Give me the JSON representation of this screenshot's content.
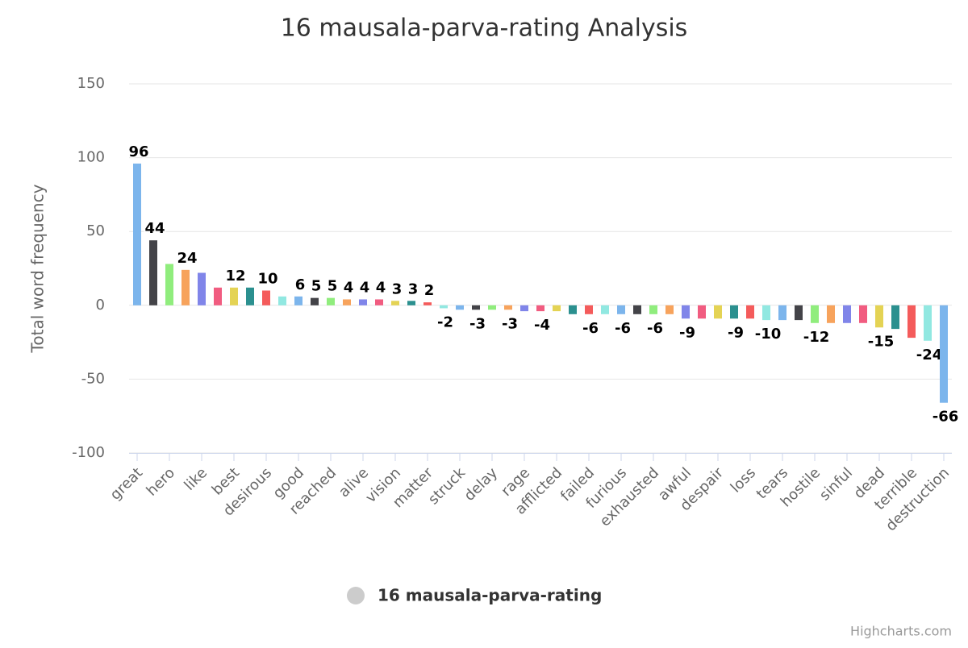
{
  "chart_data": {
    "type": "bar",
    "title": "16 mausala-parva-rating Analysis",
    "y_axis_label": "Total word frequency",
    "categories": [
      "great",
      null,
      "hero",
      null,
      "like",
      null,
      "best",
      null,
      "desirous",
      null,
      "good",
      null,
      "reached",
      null,
      "alive",
      null,
      "vision",
      null,
      "matter",
      null,
      "struck",
      null,
      "delay",
      null,
      "rage",
      null,
      "afflicted",
      null,
      "failed",
      null,
      "furious",
      null,
      "exhausted",
      null,
      "awful",
      null,
      "despair",
      null,
      "loss",
      null,
      "tears",
      null,
      "hostile",
      null,
      "sinful",
      null,
      "dead",
      null,
      "terrible",
      null,
      "destruction"
    ],
    "series": [
      {
        "name": "16 mausala-parva-rating",
        "values": [
          96,
          44,
          28,
          24,
          22,
          12,
          12,
          12,
          10,
          6,
          6,
          5,
          5,
          4,
          4,
          4,
          3,
          3,
          2,
          -2,
          -3,
          -3,
          -3,
          -3,
          -4,
          -4,
          -4,
          -6,
          -6,
          -6,
          -6,
          -6,
          -6,
          -6,
          -9,
          -9,
          -9,
          -9,
          -9,
          -10,
          -10,
          -10,
          -12,
          -12,
          -12,
          -12,
          -15,
          -16,
          -22,
          -24,
          -66
        ],
        "value_labels": [
          "96",
          "44",
          null,
          "24",
          null,
          null,
          "12",
          null,
          "10",
          null,
          "6",
          "5",
          "5",
          "4",
          "4",
          "4",
          "3",
          "3",
          "2",
          "-2",
          null,
          "-3",
          null,
          "-3",
          null,
          "-4",
          null,
          null,
          "-6",
          null,
          "-6",
          null,
          "-6",
          null,
          "-9",
          null,
          null,
          "-9",
          null,
          "-10",
          null,
          null,
          "-12",
          null,
          null,
          null,
          "-15",
          null,
          null,
          "-24",
          "-66"
        ]
      }
    ],
    "colors": [
      "#7cb5ec",
      "#434348",
      "#90ed7d",
      "#f7a35c",
      "#8085e9",
      "#f15c80",
      "#e4d354",
      "#2b908f",
      "#f45b5b",
      "#91e8e1"
    ],
    "ylim": [
      -100,
      150
    ],
    "yticks": [
      -100,
      -50,
      0,
      50,
      100,
      150
    ],
    "grid": true,
    "legend_color": "#cccccc",
    "credits": "Highcharts.com"
  }
}
